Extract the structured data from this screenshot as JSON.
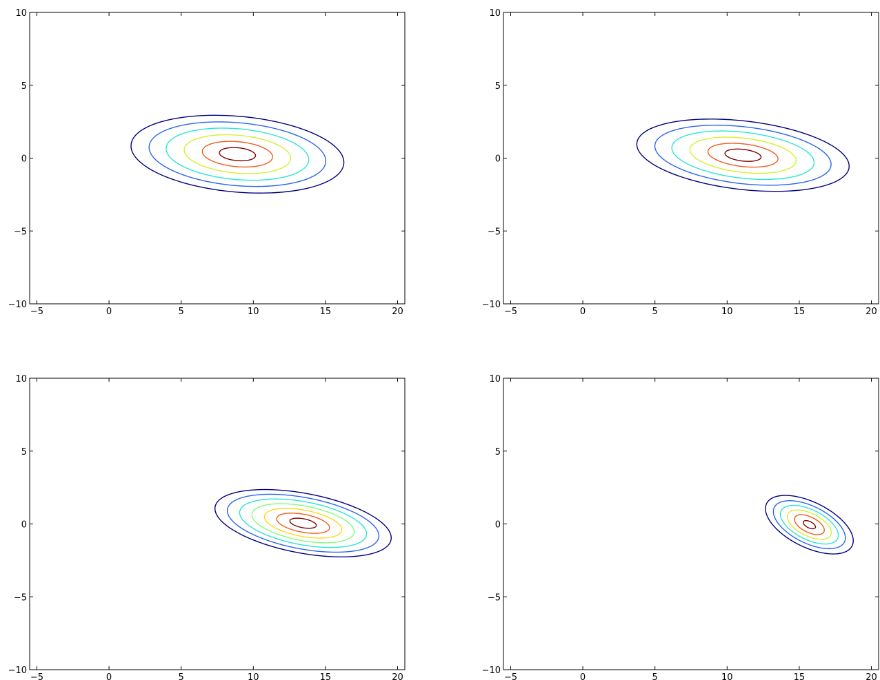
{
  "chart_data": [
    {
      "type": "contour",
      "xlim": [
        -5.5,
        20.5
      ],
      "ylim": [
        -10,
        10
      ],
      "xticks": [
        -5,
        0,
        5,
        10,
        15,
        20
      ],
      "yticks": [
        -10,
        -5,
        0,
        5,
        10
      ],
      "xtick_labels": [
        "−5",
        "0",
        "5",
        "10",
        "15",
        "20"
      ],
      "ytick_labels": [
        "−10",
        "−5",
        "0",
        "5",
        "10"
      ],
      "center": [
        8.9,
        0.27
      ],
      "outer_semi_axes": [
        7.4,
        2.6
      ],
      "angle_deg": -5,
      "level_scales": [
        1.0,
        0.83,
        0.67,
        0.5,
        0.33,
        0.17
      ],
      "level_colors": [
        "#00007f",
        "#2a64f0",
        "#29e5d0",
        "#d6f02a",
        "#f05a1e",
        "#7f0000"
      ]
    },
    {
      "type": "contour",
      "xlim": [
        -5.5,
        20.5
      ],
      "ylim": [
        -10,
        10
      ],
      "xticks": [
        -5,
        0,
        5,
        10,
        15,
        20
      ],
      "yticks": [
        -10,
        -5,
        0,
        5,
        10
      ],
      "xtick_labels": [
        "−5",
        "0",
        "5",
        "10",
        "15",
        "20"
      ],
      "ytick_labels": [
        "−10",
        "−5",
        "0",
        "5",
        "10"
      ],
      "center": [
        11.1,
        0.2
      ],
      "outer_semi_axes": [
        7.4,
        2.35
      ],
      "angle_deg": -6.5,
      "level_scales": [
        1.0,
        0.83,
        0.67,
        0.5,
        0.33,
        0.17
      ],
      "level_colors": [
        "#00007f",
        "#2a64f0",
        "#29e5d0",
        "#d6f02a",
        "#f05a1e",
        "#7f0000"
      ]
    },
    {
      "type": "contour",
      "xlim": [
        -5.5,
        20.5
      ],
      "ylim": [
        -10,
        10
      ],
      "xticks": [
        -5,
        0,
        5,
        10,
        15,
        20
      ],
      "yticks": [
        -10,
        -5,
        0,
        5,
        10
      ],
      "xtick_labels": [
        "−5",
        "0",
        "5",
        "10",
        "15",
        "20"
      ],
      "ytick_labels": [
        "−10",
        "−5",
        "0",
        "5",
        "10"
      ],
      "center": [
        13.45,
        0.05
      ],
      "outer_semi_axes": [
        6.2,
        2.05
      ],
      "angle_deg": -10.5,
      "level_scales": [
        1.0,
        0.86,
        0.72,
        0.58,
        0.44,
        0.3,
        0.15
      ],
      "level_colors": [
        "#00007f",
        "#2a64f0",
        "#29e5d0",
        "#7dff7a",
        "#ffd81a",
        "#f05a1e",
        "#7f0000"
      ]
    },
    {
      "type": "contour",
      "xlim": [
        -5.5,
        20.5
      ],
      "ylim": [
        -10,
        10
      ],
      "xticks": [
        -5,
        0,
        5,
        10,
        15,
        20
      ],
      "yticks": [
        -10,
        -5,
        0,
        5,
        10
      ],
      "xtick_labels": [
        "−5",
        "0",
        "5",
        "10",
        "15",
        "20"
      ],
      "ytick_labels": [
        "−10",
        "−5",
        "0",
        "5",
        "10"
      ],
      "center": [
        15.7,
        -0.05
      ],
      "outer_semi_axes": [
        3.3,
        1.55
      ],
      "angle_deg": -26,
      "level_scales": [
        1.0,
        0.82,
        0.66,
        0.5,
        0.34,
        0.14
      ],
      "level_colors": [
        "#00007f",
        "#2a64f0",
        "#29e5d0",
        "#d6f02a",
        "#f05a1e",
        "#7f0000"
      ]
    }
  ]
}
